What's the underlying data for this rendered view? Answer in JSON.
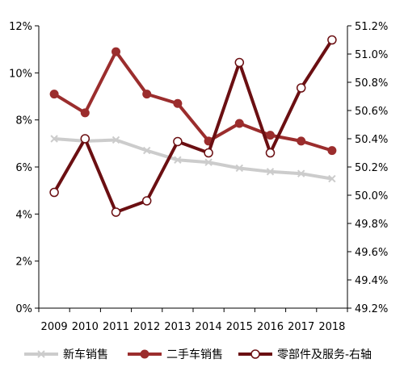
{
  "chart_data": {
    "type": "line",
    "categories": [
      "2009",
      "2010",
      "2011",
      "2012",
      "2013",
      "2014",
      "2015",
      "2016",
      "2017",
      "2018"
    ],
    "left_axis": {
      "ylim": [
        0,
        12
      ],
      "ticks": [
        "0%",
        "2%",
        "4%",
        "6%",
        "8%",
        "10%",
        "12%"
      ]
    },
    "right_axis": {
      "ylim": [
        49.2,
        51.2
      ],
      "ticks": [
        "49.2%",
        "49.4%",
        "49.6%",
        "49.8%",
        "50.0%",
        "50.2%",
        "50.4%",
        "50.6%",
        "50.8%",
        "51.0%",
        "51.2%"
      ]
    },
    "series": [
      {
        "name": "新车销售",
        "axis": "left",
        "color": "#cccccc",
        "marker": "x",
        "values": [
          7.2,
          7.1,
          7.15,
          6.7,
          6.3,
          6.2,
          5.95,
          5.8,
          5.72,
          5.5
        ]
      },
      {
        "name": "二手车销售",
        "axis": "left",
        "color": "#9b2d2d",
        "marker": "filled-circle",
        "values": [
          9.1,
          8.3,
          10.9,
          9.1,
          8.7,
          7.1,
          7.85,
          7.35,
          7.1,
          6.7
        ]
      },
      {
        "name": "零部件及服务-右轴",
        "axis": "right",
        "color": "#6b0f12",
        "marker": "hollow-circle",
        "values": [
          50.02,
          50.4,
          49.88,
          49.96,
          50.38,
          50.3,
          50.94,
          50.3,
          50.76,
          51.1
        ]
      }
    ],
    "legend_position": "bottom",
    "grid": false
  }
}
